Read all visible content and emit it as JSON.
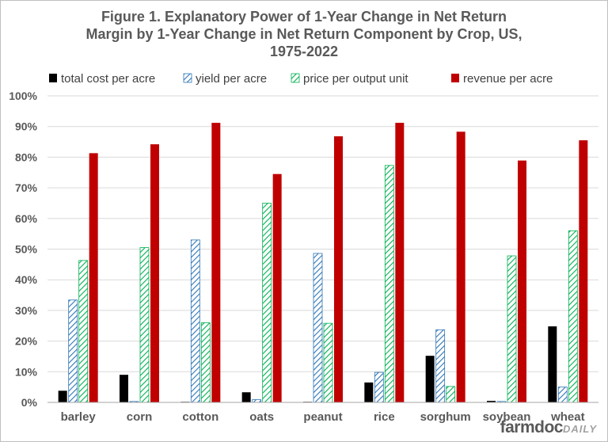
{
  "title_lines": [
    "Figure 1.  Explanatory Power of 1-Year Change in Net Return",
    "Margin by 1-Year Change in Net Return Component by Crop, US,",
    "1975-2022"
  ],
  "brand": {
    "part1": "farmdoc",
    "part2": "DAILY"
  },
  "colors": {
    "total_cost": "#000000",
    "yield": "#2e75b6",
    "price": "#00b050",
    "revenue": "#c00000",
    "grid": "#d9d9d9",
    "axis": "#a6a6a6"
  },
  "chart_data": {
    "type": "bar",
    "title": "Figure 1.  Explanatory Power of 1-Year Change in Net Return Margin by 1-Year Change in Net Return Component by Crop, US, 1975-2022",
    "categories": [
      "barley",
      "corn",
      "cotton",
      "oats",
      "peanut",
      "rice",
      "sorghum",
      "soybean",
      "wheat"
    ],
    "series": [
      {
        "name": "total cost per acre",
        "pattern": "solid",
        "values": [
          3.8,
          9.0,
          0.2,
          3.3,
          0.2,
          6.5,
          15.2,
          0.5,
          24.8
        ]
      },
      {
        "name": "yield per acre",
        "pattern": "hatch",
        "values": [
          33.4,
          0.3,
          53.0,
          0.9,
          48.6,
          9.8,
          23.7,
          0.3,
          5.0
        ]
      },
      {
        "name": "price per output unit",
        "pattern": "hatch",
        "values": [
          46.3,
          50.5,
          26.0,
          65.0,
          25.8,
          77.3,
          5.2,
          47.8,
          56.0
        ]
      },
      {
        "name": "revenue per acre",
        "pattern": "solid",
        "values": [
          81.3,
          84.2,
          91.2,
          74.5,
          86.8,
          91.2,
          88.3,
          78.9,
          85.5
        ]
      }
    ],
    "ylim": [
      0,
      100
    ],
    "yticks": [
      "0%",
      "10%",
      "20%",
      "30%",
      "40%",
      "50%",
      "60%",
      "70%",
      "80%",
      "90%",
      "100%"
    ],
    "grid": true,
    "legend_position": "top"
  }
}
